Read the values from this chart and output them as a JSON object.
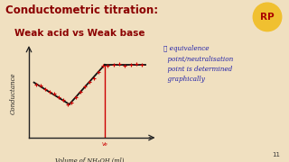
{
  "title_line1": "Conductometric titration:",
  "title_line2": "Weak acid vs Weak base",
  "title_color": "#8b0000",
  "bg_color": "#f0e0c0",
  "ylabel": "Conductance",
  "xlabel": "Volume of NH₄OH (ml)",
  "annotation_text": "❖ equivalence\n  point/neutralisation\n  point is determined\n  graphically",
  "annotation_color": "#2222aa",
  "curve_color": "#111111",
  "dot_color": "#cc0000",
  "vline_color": "#cc0000",
  "ve_label": "Ve",
  "rp_circle_color": "#f0c030",
  "rp_text_color": "#aa0000",
  "rp_border_color": "#cc0000",
  "page_number": "11",
  "axis_color": "#222222"
}
